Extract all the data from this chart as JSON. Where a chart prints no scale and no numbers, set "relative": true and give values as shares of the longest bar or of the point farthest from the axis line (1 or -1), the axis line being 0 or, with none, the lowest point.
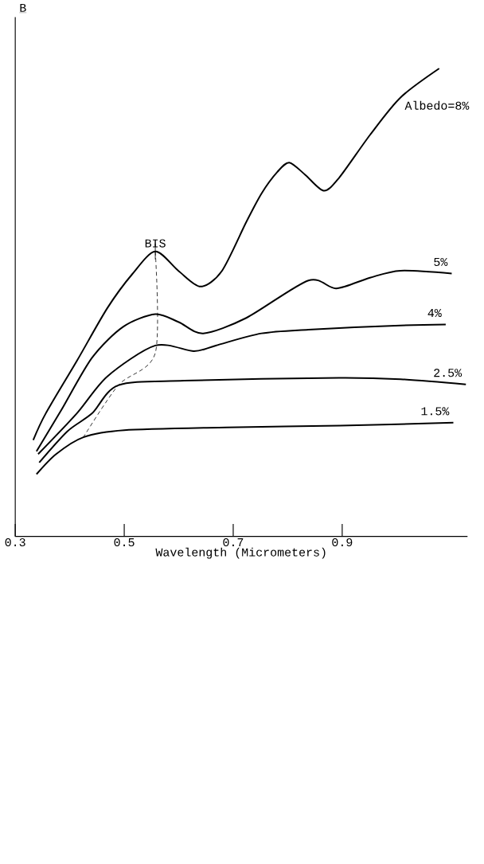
{
  "chart_data": {
    "type": "line",
    "relative": true,
    "xlabel": "Wavelength (Micrometers)",
    "ylabel": "B",
    "xlim": [
      0.3,
      1.13
    ],
    "xticks": [
      0.3,
      0.5,
      0.7,
      0.9
    ],
    "line_style": "solid",
    "annotations": [
      {
        "text": "BIS",
        "x": 0.557,
        "y": 0.609
      }
    ],
    "series": [
      {
        "name": "Albedo=8%",
        "color": "#000000",
        "x": [
          0.333,
          0.356,
          0.413,
          0.469,
          0.515,
          0.557,
          0.6,
          0.64,
          0.679,
          0.724,
          0.752,
          0.781,
          0.803,
          0.832,
          0.866,
          0.894,
          0.951,
          1.007,
          1.078
        ],
        "values": [
          0.206,
          0.263,
          0.375,
          0.488,
          0.561,
          0.609,
          0.567,
          0.534,
          0.567,
          0.672,
          0.733,
          0.779,
          0.799,
          0.773,
          0.739,
          0.766,
          0.858,
          0.938,
          1.0
        ]
      },
      {
        "name": "5%",
        "color": "#000000",
        "x": [
          0.339,
          0.384,
          0.441,
          0.498,
          0.557,
          0.6,
          0.645,
          0.724,
          0.838,
          0.889,
          0.951,
          1.007,
          1.101
        ],
        "values": [
          0.182,
          0.269,
          0.382,
          0.448,
          0.475,
          0.458,
          0.434,
          0.467,
          0.547,
          0.53,
          0.553,
          0.568,
          0.562
        ]
      },
      {
        "name": "4%",
        "color": "#000000",
        "x": [
          0.342,
          0.413,
          0.469,
          0.557,
          0.628,
          0.668,
          0.752,
          0.838,
          1.007,
          1.09
        ],
        "values": [
          0.176,
          0.263,
          0.342,
          0.408,
          0.396,
          0.408,
          0.434,
          0.442,
          0.451,
          0.453
        ]
      },
      {
        "name": "2.5%",
        "color": "#000000",
        "x": [
          0.344,
          0.396,
          0.441,
          0.489,
          0.61,
          0.894,
          1.007,
          1.127
        ],
        "values": [
          0.158,
          0.225,
          0.263,
          0.323,
          0.333,
          0.339,
          0.336,
          0.325
        ]
      },
      {
        "name": "1.5%",
        "color": "#000000",
        "x": [
          0.339,
          0.375,
          0.425,
          0.5,
          0.688,
          0.896,
          1.104
        ],
        "values": [
          0.133,
          0.176,
          0.212,
          0.227,
          0.233,
          0.237,
          0.243
        ]
      },
      {
        "type": "line",
        "line_style": "dashed",
        "color": "#000000",
        "x": [
          0.557,
          0.557,
          0.489,
          0.425
        ],
        "values": [
          0.609,
          0.392,
          0.323,
          0.212
        ]
      }
    ]
  }
}
